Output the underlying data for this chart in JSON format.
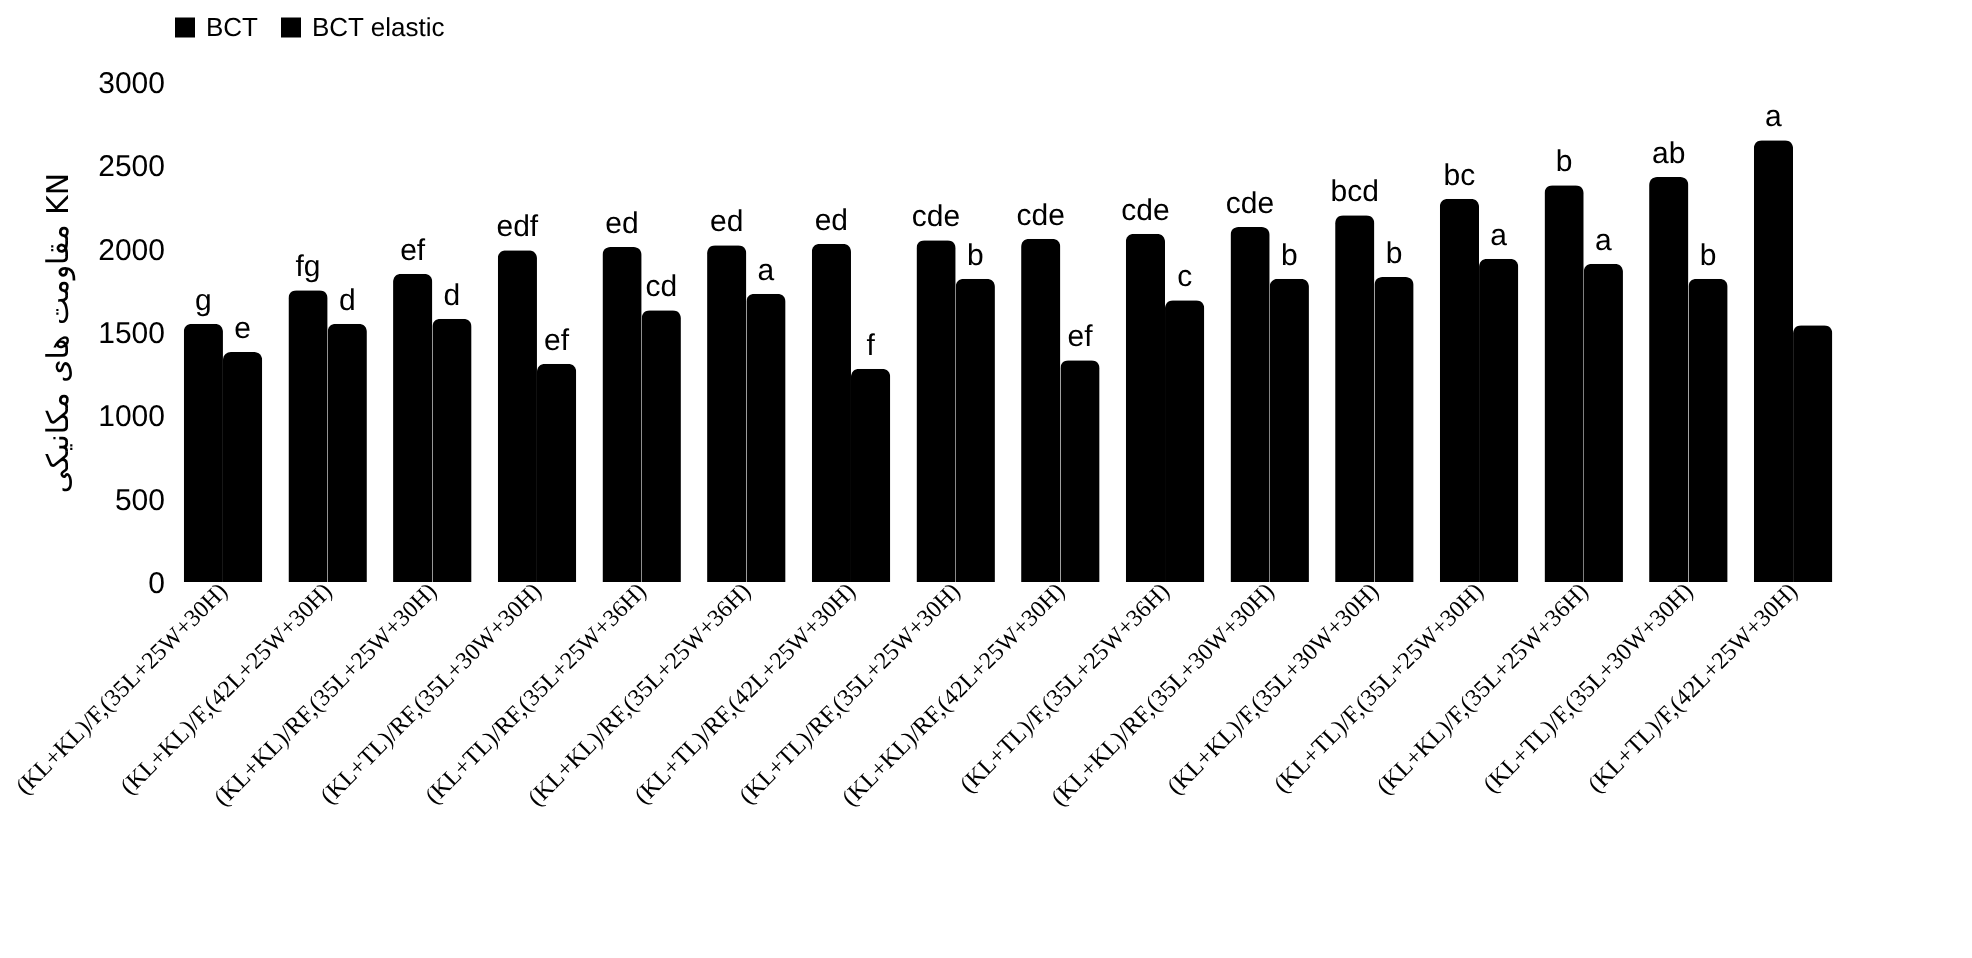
{
  "chart_data": {
    "type": "bar",
    "ylabel": "مقاومت های مکانیکی KN",
    "categories": [
      "(KL+KL)/F,(35L+25W+30H)",
      "(KL+KL)/F,(42L+25W+30H)",
      "(KL+KL)/RF,(35L+25W+30H)",
      "(KL+TL)/RF,(35L+30W+30H)",
      "(KL+TL)/RF,(35L+25W+36H)",
      "(KL+KL)/RF,(35L+25W+36H)",
      "(KL+TL)/RF,(42L+25W+30H)",
      "(KL+TL)/RF,(35L+25W+30H)",
      "(KL+KL)/RF,(42L+25W+30H)",
      "(KL+TL)/F,(35L+25W+36H)",
      "(KL+KL)/RF,(35L+30W+30H)",
      "(KL+KL)/F,(35L+30W+30H)",
      "(KL+TL)/F,(35L+25W+30H)",
      "(KL+KL)/F,(35L+25W+36H)",
      "(KL+TL)/F,(35L+30W+30H)",
      "(KL+TL)/F,(42L+25W+30H)"
    ],
    "series": [
      {
        "name": "BCT",
        "color": "#000000",
        "values": [
          1550,
          1750,
          1850,
          1990,
          2010,
          2020,
          2030,
          2050,
          2060,
          2090,
          2130,
          2200,
          2300,
          2380,
          2430,
          2650
        ],
        "value_labels": [
          "g",
          "fg",
          "ef",
          "edf",
          "ed",
          "ed",
          "ed",
          "cde",
          "cde",
          "cde",
          "cde",
          "bcd",
          "bc",
          "b",
          "ab",
          "a"
        ]
      },
      {
        "name": "BCT elastic",
        "color": "#000000",
        "values": [
          1380,
          1550,
          1580,
          1310,
          1630,
          1730,
          1280,
          1820,
          1330,
          1690,
          1820,
          1830,
          1940,
          1910,
          1820,
          1540
        ],
        "value_labels": [
          "e",
          "d",
          "d",
          "ef",
          "cd",
          "a",
          "f",
          "b",
          "ef",
          "c",
          "b",
          "b",
          "a",
          "a",
          "b",
          null
        ]
      }
    ],
    "ylim": [
      0,
      3000
    ],
    "yticks": [
      0,
      500,
      1000,
      1500,
      2000,
      2500,
      3000
    ],
    "grid": false,
    "legend": "top"
  }
}
